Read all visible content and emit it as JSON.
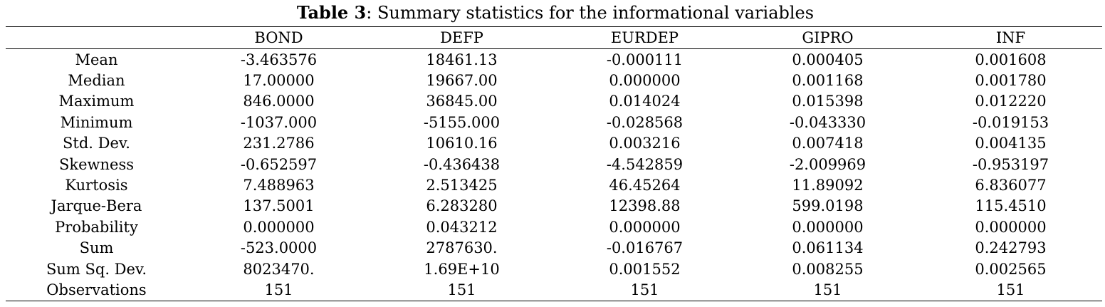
{
  "caption": {
    "label": "Table 3",
    "text": ": Summary statistics for the informational variables"
  },
  "table": {
    "columns": [
      "",
      "BOND",
      "DEFP",
      "EURDEP",
      "GIPRO",
      "INF"
    ],
    "rows": [
      {
        "label": "Mean",
        "values": [
          "-3.463576",
          "18461.13",
          "-0.000111",
          "0.000405",
          "0.001608"
        ]
      },
      {
        "label": "Median",
        "values": [
          "17.00000",
          "19667.00",
          "0.000000",
          "0.001168",
          "0.001780"
        ]
      },
      {
        "label": "Maximum",
        "values": [
          "846.0000",
          "36845.00",
          "0.014024",
          "0.015398",
          "0.012220"
        ]
      },
      {
        "label": "Minimum",
        "values": [
          "-1037.000",
          "-5155.000",
          "-0.028568",
          "-0.043330",
          "-0.019153"
        ]
      },
      {
        "label": "Std. Dev.",
        "values": [
          "231.2786",
          "10610.16",
          "0.003216",
          "0.007418",
          "0.004135"
        ]
      },
      {
        "label": "Skewness",
        "values": [
          "-0.652597",
          "-0.436438",
          "-4.542859",
          "-2.009969",
          "-0.953197"
        ]
      },
      {
        "label": "Kurtosis",
        "values": [
          "7.488963",
          "2.513425",
          "46.45264",
          "11.89092",
          "6.836077"
        ]
      },
      {
        "label": "Jarque-Bera",
        "values": [
          "137.5001",
          "6.283280",
          "12398.88",
          "599.0198",
          "115.4510"
        ]
      },
      {
        "label": "Probability",
        "values": [
          "0.000000",
          "0.043212",
          "0.000000",
          "0.000000",
          "0.000000"
        ]
      },
      {
        "label": "Sum",
        "values": [
          "-523.0000",
          "2787630.",
          "-0.016767",
          "0.061134",
          "0.242793"
        ]
      },
      {
        "label": "Sum Sq. Dev.",
        "values": [
          "8023470.",
          "1.69E+10",
          "0.001552",
          "0.008255",
          "0.002565"
        ]
      },
      {
        "label": "Observations",
        "values": [
          "151",
          "151",
          "151",
          "151",
          "151"
        ]
      }
    ]
  }
}
